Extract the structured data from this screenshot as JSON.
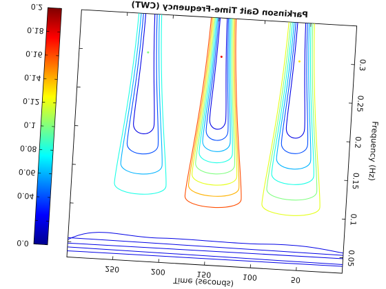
{
  "chart_data": {
    "type": "heatmap",
    "subtype": "contour",
    "title": "Parkinson Gait Time-Frequency (CWT)",
    "xlabel": "Time (seconds)",
    "ylabel": "Frequency (Hz)",
    "xlim": [
      0,
      300
    ],
    "ylim": [
      0.03,
      0.35
    ],
    "x_ticks": [
      50,
      100,
      150,
      200,
      250
    ],
    "x_tick_labels": [
      "50",
      "100",
      "150",
      "200",
      "250"
    ],
    "y_ticks": [
      0.05,
      0.1,
      0.15,
      0.2,
      0.25,
      0.3
    ],
    "y_tick_labels": [
      "0.05",
      "0.1",
      "0.15",
      "0.2",
      "0.25",
      "0.3"
    ],
    "orientation": "mirrored-and-rotated-image",
    "colormap": "jet",
    "colorbar": {
      "range": [
        0,
        0.2
      ],
      "ticks": [
        0,
        0.02,
        0.04,
        0.06,
        0.08,
        0.1,
        0.12,
        0.14,
        0.16,
        0.18,
        0.2
      ],
      "tick_labels": [
        "0.0",
        "",
        "0.04",
        "0.06",
        "0.08",
        "0.1",
        "0.12",
        "0.14",
        "0.16",
        "0.18",
        "0.2"
      ]
    },
    "contour_levels": [
      0.02,
      0.04,
      0.06,
      0.08,
      0.1,
      0.12,
      0.14,
      0.16,
      0.18
    ],
    "peaks": [
      {
        "time": 60,
        "frequency": 0.3,
        "magnitude": 0.13
      },
      {
        "time": 145,
        "frequency": 0.3,
        "magnitude": 0.18
      },
      {
        "time": 225,
        "frequency": 0.3,
        "magnitude": 0.1
      }
    ],
    "grid": false
  },
  "colors": {
    "low": "#00008f",
    "mid": "#00ffff",
    "high": "#800000",
    "axis": "#000000"
  }
}
